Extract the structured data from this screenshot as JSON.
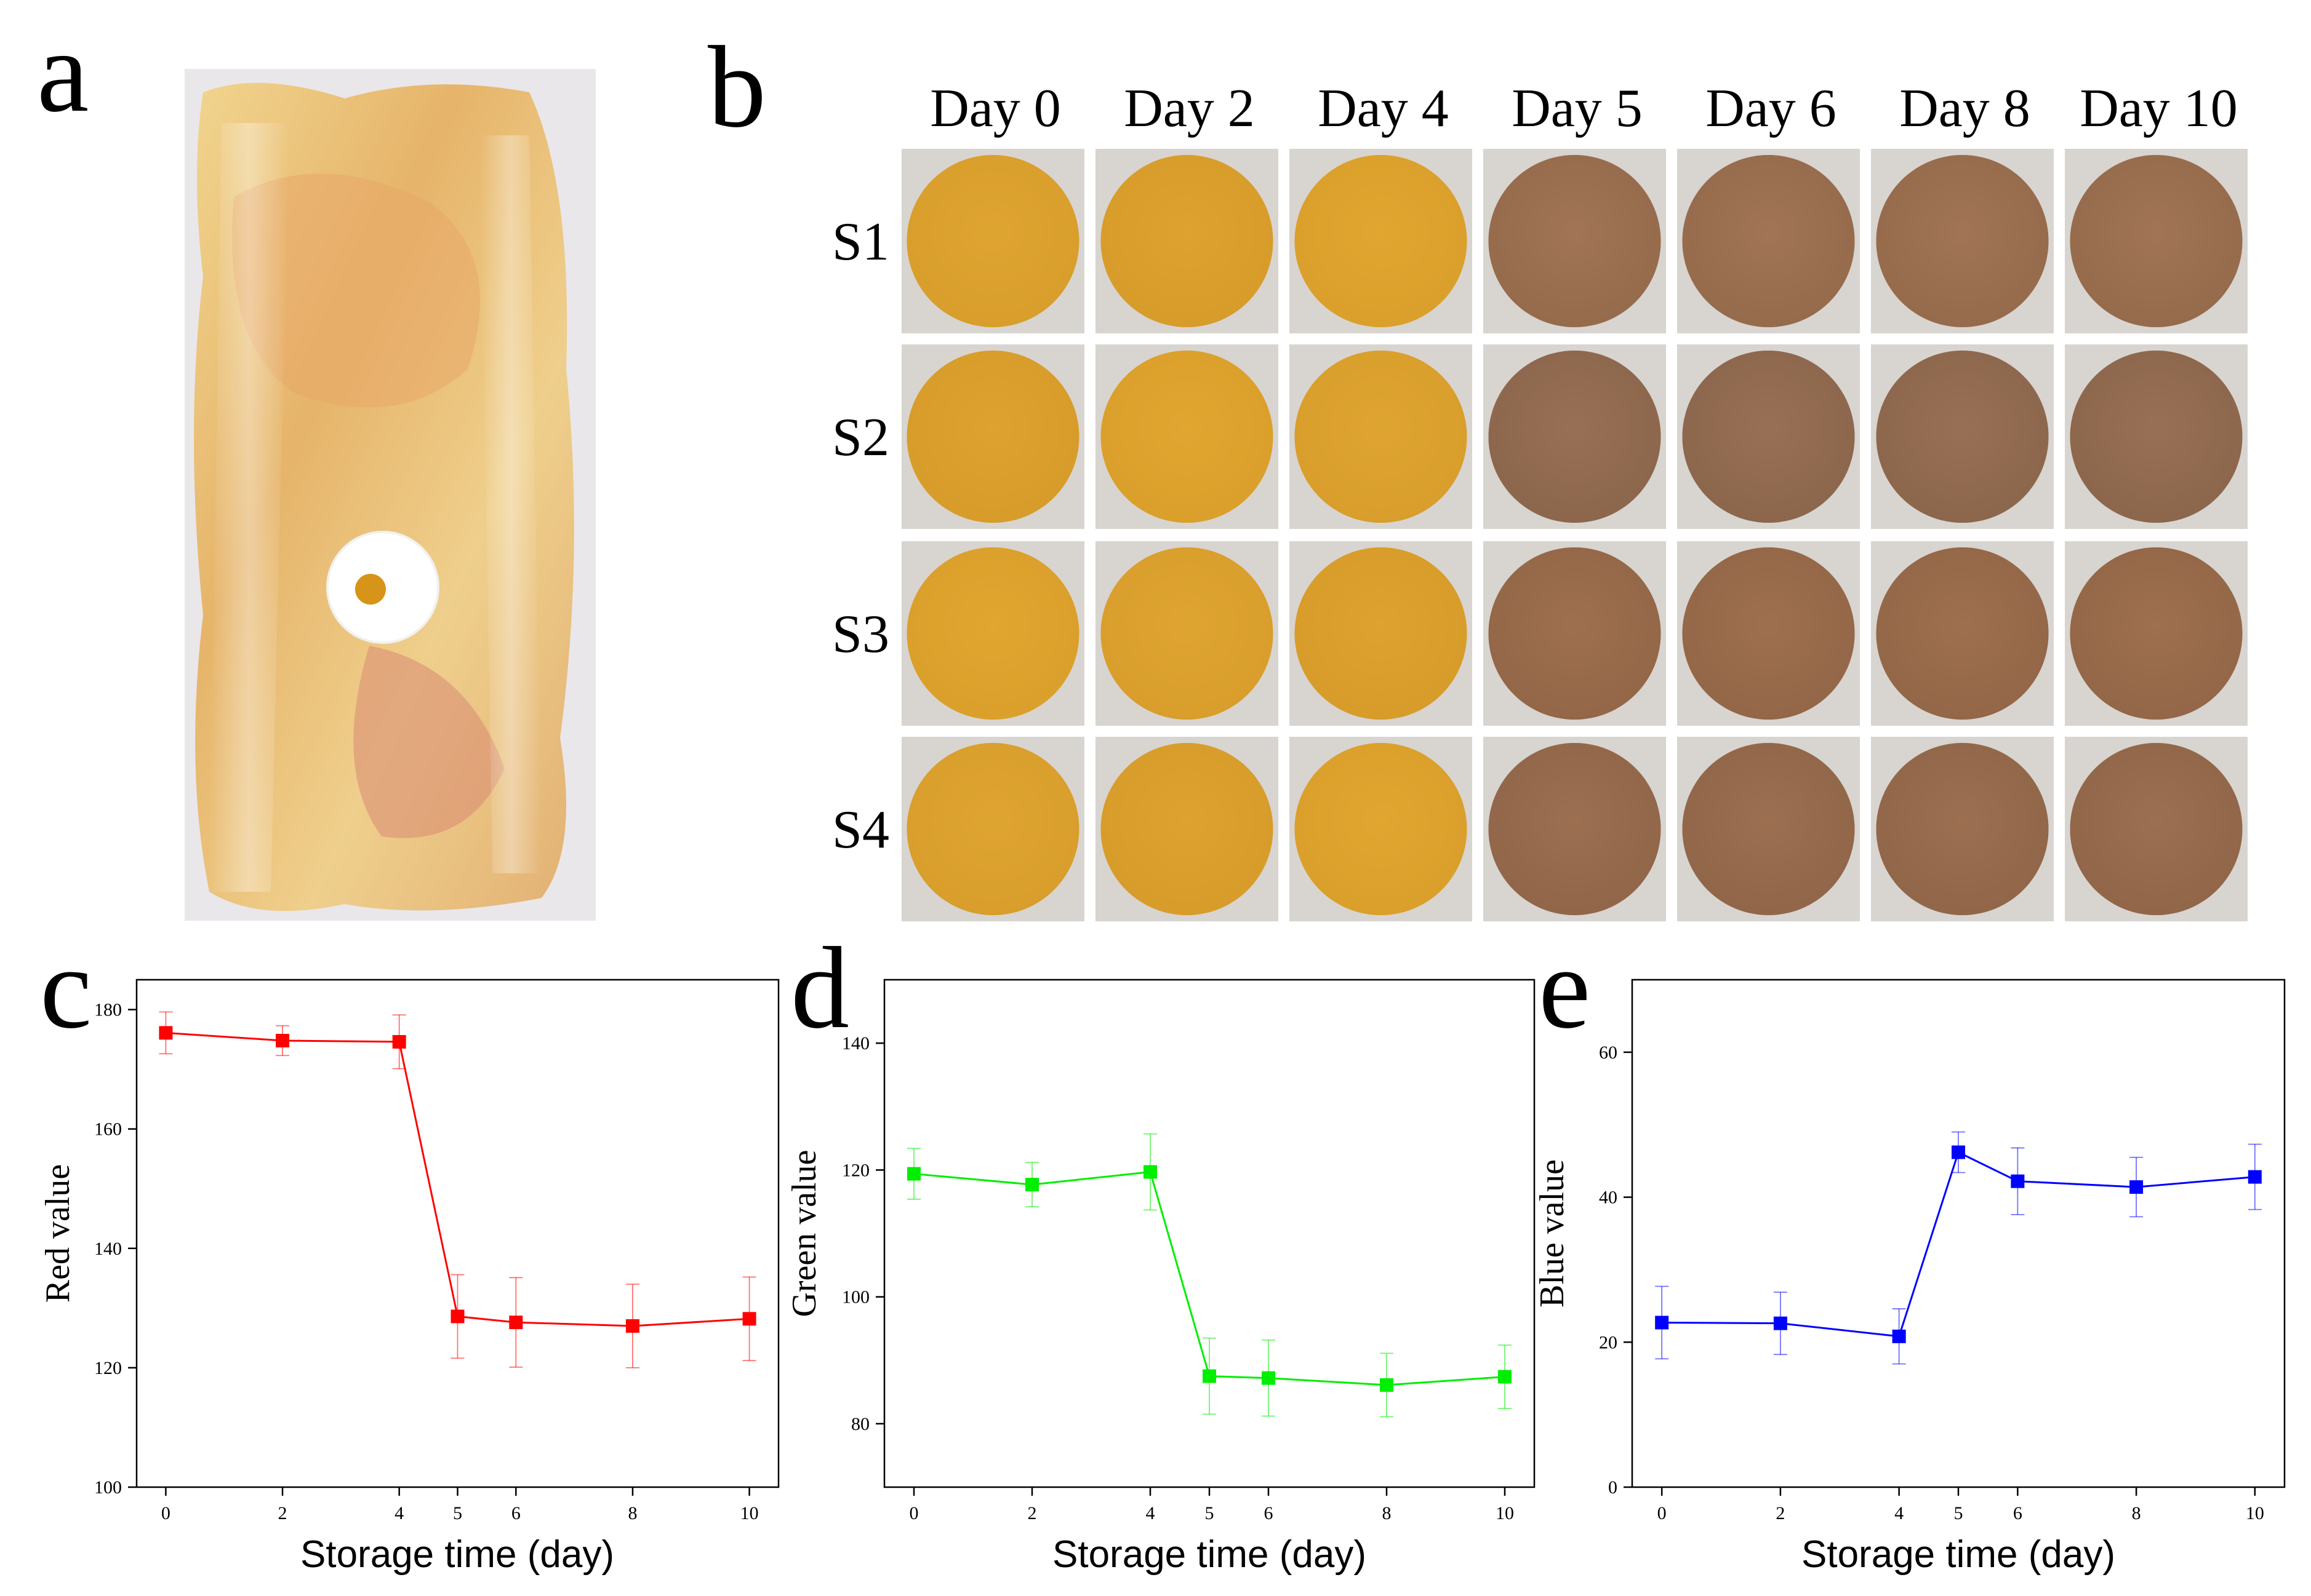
{
  "panels": {
    "a": {
      "letter": "a"
    },
    "b": {
      "letter": "b",
      "days": [
        "Day 0",
        "Day 2",
        "Day 4",
        "Day 5",
        "Day 6",
        "Day 8",
        "Day 10"
      ],
      "samples": [
        "S1",
        "S2",
        "S3",
        "S4"
      ],
      "disc_colors": {
        "fresh": [
          "#dca12e",
          "#d99d2c",
          "#dfa42d"
        ],
        "spoiled": [
          "#9e7250",
          "#8e6a50",
          "#9a6a47",
          "#96694a"
        ]
      }
    },
    "c": {
      "letter": "c"
    },
    "d": {
      "letter": "d"
    },
    "e": {
      "letter": "e"
    }
  },
  "chart_data": [
    {
      "panel": "c",
      "type": "line",
      "color": "#ff0000",
      "xlabel": "Storage time (day)",
      "ylabel": "Red value",
      "xlim": [
        -0.5,
        10.5
      ],
      "xticks": [
        0,
        2,
        4,
        5,
        6,
        8,
        10
      ],
      "ylim": [
        100,
        185
      ],
      "yticks": [
        100,
        120,
        140,
        160,
        180
      ],
      "x": [
        0,
        2,
        4,
        5,
        6,
        8,
        10
      ],
      "y": [
        176.1,
        174.8,
        174.6,
        128.6,
        127.6,
        127.0,
        128.2
      ],
      "err": [
        3.5,
        2.5,
        4.5,
        7.0,
        7.5,
        7.0,
        7.0
      ]
    },
    {
      "panel": "d",
      "type": "line",
      "color": "#00ee00",
      "xlabel": "Storage time (day)",
      "ylabel": "Green value",
      "xlim": [
        -0.5,
        10.5
      ],
      "xticks": [
        0,
        2,
        4,
        5,
        6,
        8,
        10
      ],
      "ylim": [
        70,
        150
      ],
      "yticks": [
        80,
        100,
        120,
        140
      ],
      "x": [
        0,
        2,
        4,
        5,
        6,
        8,
        10
      ],
      "y": [
        119.4,
        117.7,
        119.7,
        87.5,
        87.2,
        86.1,
        87.4
      ],
      "err": [
        4.0,
        3.5,
        6.0,
        6.0,
        6.0,
        5.0,
        5.0
      ]
    },
    {
      "panel": "e",
      "type": "line",
      "color": "#0000ff",
      "xlabel": "Storage time (day)",
      "ylabel": "Blue value",
      "xlim": [
        -0.5,
        10.5
      ],
      "xticks": [
        0,
        2,
        4,
        5,
        6,
        8,
        10
      ],
      "ylim": [
        0,
        70
      ],
      "yticks": [
        0,
        20,
        40,
        60
      ],
      "x": [
        0,
        2,
        4,
        5,
        6,
        8,
        10
      ],
      "y": [
        22.7,
        22.6,
        20.8,
        46.2,
        42.2,
        41.4,
        42.8
      ],
      "err": [
        5.0,
        4.3,
        3.8,
        2.8,
        4.6,
        4.1,
        4.5
      ]
    }
  ]
}
